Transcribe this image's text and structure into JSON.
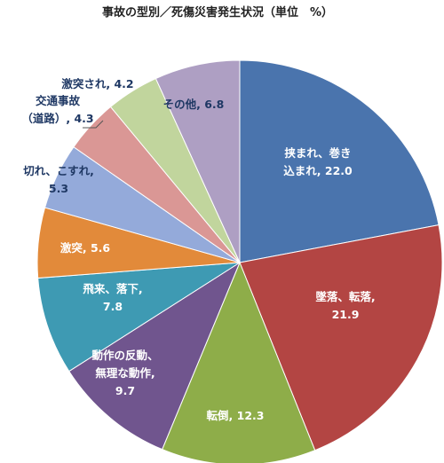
{
  "chart_data": {
    "type": "pie",
    "title": "事故の型別／死傷災害発生状況（単位　%）",
    "slices": [
      {
        "label": "挟まれ、巻き込まれ",
        "label_lines": [
          "挟まれ、巻き",
          "込まれ, 22.0"
        ],
        "value": 22.0,
        "color": "#4A74AD"
      },
      {
        "label": "墜落、転落",
        "label_lines": [
          "墜落、転落,",
          "21.9"
        ],
        "value": 21.9,
        "color": "#B34543"
      },
      {
        "label": "転倒",
        "label_lines": [
          "転倒, 12.3"
        ],
        "value": 12.3,
        "color": "#8EAD49"
      },
      {
        "label": "動作の反動、無理な動作",
        "label_lines": [
          "動作の反動、",
          "無理な動作,",
          "9.7"
        ],
        "value": 9.7,
        "color": "#70558E"
      },
      {
        "label": "飛来、落下",
        "label_lines": [
          "飛来、落下,",
          "7.8"
        ],
        "value": 7.8,
        "color": "#3E9AB3"
      },
      {
        "label": "激突",
        "label_lines": [
          "激突, 5.6"
        ],
        "value": 5.6,
        "color": "#E28A3A"
      },
      {
        "label": "切れ、こすれ",
        "label_lines": [
          "切れ、こすれ,",
          "5.3"
        ],
        "value": 5.3,
        "color": "#94AADA"
      },
      {
        "label": "交通事故（道路）",
        "label_lines": [
          "交通事故",
          "（道路）, 4.3"
        ],
        "value": 4.3,
        "color": "#DA9795"
      },
      {
        "label": "激突され",
        "label_lines": [
          "激突され, 4.2"
        ],
        "value": 4.2,
        "color": "#C1D59D"
      },
      {
        "label": "その他",
        "label_lines": [
          "その他, 6.8"
        ],
        "value": 6.8,
        "color": "#AE9FC3"
      }
    ]
  }
}
